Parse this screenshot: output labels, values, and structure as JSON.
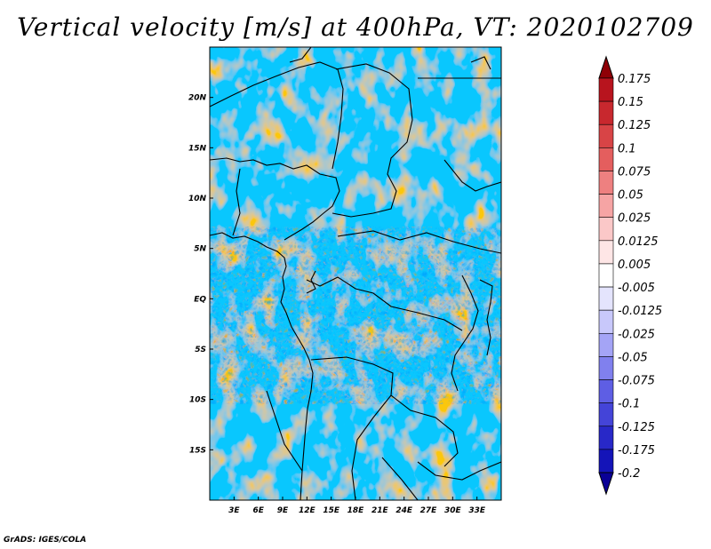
{
  "title": "Vertical velocity [m/s] at 400hPa, VT: 2020102709",
  "credit": "GrADS: IGES/COLA",
  "map": {
    "lon_range": [
      0,
      36
    ],
    "lat_range": [
      -20,
      25
    ],
    "lon_ticks": [
      {
        "value": 3,
        "label": "3E"
      },
      {
        "value": 6,
        "label": "6E"
      },
      {
        "value": 9,
        "label": "9E"
      },
      {
        "value": 12,
        "label": "12E"
      },
      {
        "value": 15,
        "label": "15E"
      },
      {
        "value": 18,
        "label": "18E"
      },
      {
        "value": 21,
        "label": "21E"
      },
      {
        "value": 24,
        "label": "24E"
      },
      {
        "value": 27,
        "label": "27E"
      },
      {
        "value": 30,
        "label": "30E"
      },
      {
        "value": 33,
        "label": "33E"
      }
    ],
    "lat_ticks": [
      {
        "value": 20,
        "label": "20N"
      },
      {
        "value": 15,
        "label": "15N"
      },
      {
        "value": 10,
        "label": "10N"
      },
      {
        "value": 5,
        "label": "5N"
      },
      {
        "value": 0,
        "label": "EQ"
      },
      {
        "value": -5,
        "label": "5S"
      },
      {
        "value": -10,
        "label": "10S"
      },
      {
        "value": -15,
        "label": "15S"
      }
    ]
  },
  "colorbar": {
    "levels": [
      {
        "label": "0.175",
        "color": "#a3000f"
      },
      {
        "label": "0.15",
        "color": "#b8141e"
      },
      {
        "label": "0.125",
        "color": "#c8282e"
      },
      {
        "label": "0.1",
        "color": "#d84446"
      },
      {
        "label": "0.075",
        "color": "#e45e5e"
      },
      {
        "label": "0.05",
        "color": "#ee8080"
      },
      {
        "label": "0.025",
        "color": "#f6a4a4"
      },
      {
        "label": "0.0125",
        "color": "#fbc8c8"
      },
      {
        "label": "0.005",
        "color": "#fee6e6"
      },
      {
        "label": "-0.005",
        "color": "#ffffff"
      },
      {
        "label": "-0.0125",
        "color": "#e4e4fd"
      },
      {
        "label": "-0.025",
        "color": "#c8c8fb"
      },
      {
        "label": "-0.05",
        "color": "#a4a4f6"
      },
      {
        "label": "-0.075",
        "color": "#8080ee"
      },
      {
        "label": "-0.1",
        "color": "#5e5ee4"
      },
      {
        "label": "-0.125",
        "color": "#4444d8"
      },
      {
        "label": "-0.175",
        "color": "#2828c8"
      },
      {
        "label": "-0.2",
        "color": "#1414b8"
      }
    ],
    "top_arrow_color": "#8f0006",
    "bottom_arrow_color": "#0a0096"
  }
}
